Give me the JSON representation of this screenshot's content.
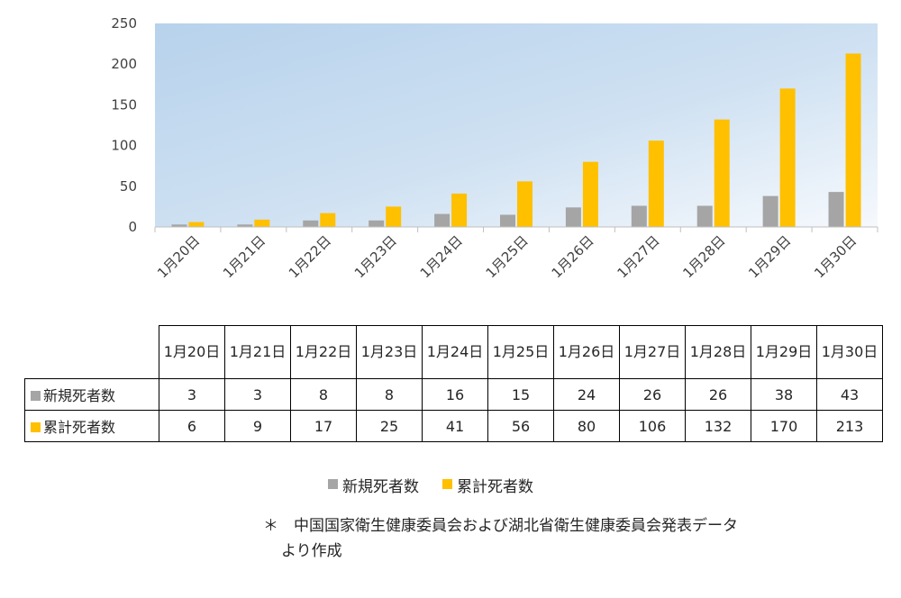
{
  "chart_data": {
    "type": "bar",
    "categories": [
      "1月20日",
      "1月21日",
      "1月22日",
      "1月23日",
      "1月24日",
      "1月25日",
      "1月26日",
      "1月27日",
      "1月28日",
      "1月29日",
      "1月30日"
    ],
    "series": [
      {
        "name": "新規死者数",
        "color": "#a5a5a5",
        "values": [
          3,
          3,
          8,
          8,
          16,
          15,
          24,
          26,
          26,
          38,
          43
        ]
      },
      {
        "name": "累計死者数",
        "color": "#ffc000",
        "values": [
          6,
          9,
          17,
          25,
          41,
          56,
          80,
          106,
          132,
          170,
          213
        ]
      }
    ],
    "y_ticks": [
      "0",
      "50",
      "100",
      "150",
      "200",
      "250"
    ],
    "ylim": [
      0,
      250
    ],
    "grid": false,
    "legend": "bottom",
    "background": "gradient-blue"
  },
  "table": {
    "categories": [
      "1月20日",
      "1月21日",
      "1月22日",
      "1月23日",
      "1月24日",
      "1月25日",
      "1月26日",
      "1月27日",
      "1月28日",
      "1月29日",
      "1月30日"
    ],
    "rows": [
      {
        "label": "新規死者数",
        "color": "#a5a5a5",
        "values": [
          "3",
          "3",
          "8",
          "8",
          "16",
          "15",
          "24",
          "26",
          "26",
          "38",
          "43"
        ]
      },
      {
        "label": "累計死者数",
        "color": "#ffc000",
        "values": [
          "6",
          "9",
          "17",
          "25",
          "41",
          "56",
          "80",
          "106",
          "132",
          "170",
          "213"
        ]
      }
    ]
  },
  "legend": {
    "items": [
      {
        "label": "新規死者数",
        "color": "#a5a5a5"
      },
      {
        "label": "累計死者数",
        "color": "#ffc000"
      }
    ]
  },
  "source_note": {
    "line1": "＊　中国国家衛生健康委員会および湖北省衛生健康委員会発表データ",
    "line2": "より作成"
  }
}
